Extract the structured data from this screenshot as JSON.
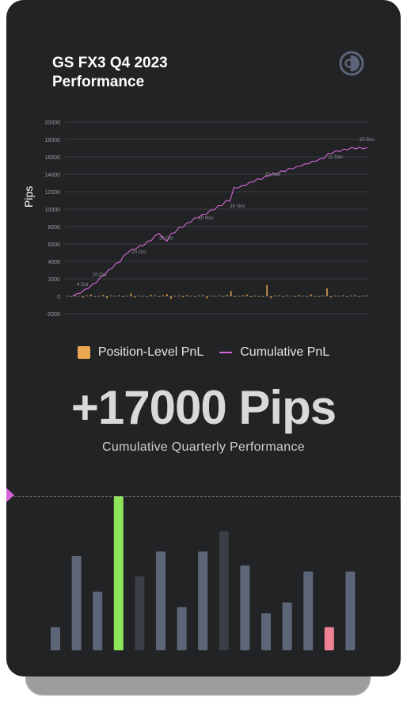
{
  "header": {
    "title": "GS FX3 Q4 2023\nPerformance",
    "logo_icon": "half-circle-logo-icon"
  },
  "chart_data": {
    "type": "line",
    "ylabel": "Pips",
    "ylim": [
      -2000,
      20000
    ],
    "yticks": [
      -2000,
      0,
      2000,
      4000,
      6000,
      8000,
      10000,
      12000,
      14000,
      16000,
      18000,
      20000
    ],
    "grid": true,
    "legend_placement": "bottom-center",
    "series": [
      {
        "name": "Position-Level PnL",
        "type": "bar",
        "color": "#e9a84f",
        "values": [
          60,
          -80,
          120,
          40,
          -150,
          90,
          200,
          -60,
          30,
          150,
          -220,
          80,
          40,
          110,
          -90,
          60,
          320,
          -140,
          70,
          30,
          -60,
          180,
          90,
          -40,
          130,
          260,
          -300,
          50,
          70,
          -110,
          140,
          40,
          -60,
          90,
          120,
          -250,
          60,
          30,
          80,
          -70,
          160,
          600,
          -80,
          40,
          100,
          200,
          -90,
          60,
          30,
          -50,
          1300,
          -200,
          70,
          110,
          -40,
          90,
          60,
          -80,
          150,
          40,
          -60,
          210,
          30,
          -50,
          80,
          900,
          -120,
          60,
          40,
          100,
          -30,
          70,
          120,
          -60,
          50,
          80
        ]
      },
      {
        "name": "Cumulative PnL",
        "type": "line",
        "color": "#d565d6",
        "x": [
          0,
          1,
          2,
          3,
          4,
          5,
          6,
          7,
          8,
          9,
          10,
          11,
          12,
          13,
          14,
          15,
          16,
          17,
          18,
          19,
          20,
          21,
          22,
          23,
          24,
          25,
          26,
          27,
          28,
          29,
          30,
          31,
          32,
          33,
          34,
          35,
          36,
          37,
          38,
          39,
          40,
          41,
          42,
          43,
          44,
          45,
          46,
          47,
          48,
          49,
          50,
          51,
          52,
          53,
          54,
          55,
          56,
          57,
          58,
          59,
          60,
          61,
          62,
          63,
          64,
          65,
          66,
          67,
          68,
          69,
          70,
          71,
          72,
          73,
          74,
          75
        ],
        "values": [
          0,
          200,
          450,
          700,
          1000,
          1300,
          1650,
          2100,
          2500,
          2900,
          3300,
          3700,
          4000,
          4600,
          5100,
          5300,
          5500,
          5700,
          5900,
          6200,
          6500,
          6900,
          7300,
          6600,
          6400,
          7100,
          7400,
          7800,
          8000,
          8300,
          8600,
          8900,
          9100,
          9300,
          9500,
          9800,
          10000,
          10300,
          10500,
          10900,
          11000,
          12400,
          12500,
          12600,
          12800,
          13000,
          13200,
          13400,
          13500,
          13700,
          13900,
          14000,
          14100,
          14300,
          14400,
          14600,
          14700,
          14800,
          15000,
          15100,
          15300,
          15400,
          15600,
          15700,
          15900,
          16300,
          16500,
          16600,
          16700,
          16800,
          16900,
          17000,
          17000,
          17000,
          17000,
          17000
        ]
      }
    ],
    "annotations": [
      {
        "label": "4 Oct",
        "x": 1,
        "y": 1200
      },
      {
        "label": "10 Oct",
        "x": 5,
        "y": 2300
      },
      {
        "label": "20 Oct",
        "x": 15,
        "y": 4900
      },
      {
        "label": "30 Oct",
        "x": 22,
        "y": 6500
      },
      {
        "label": "10 Nov",
        "x": 32,
        "y": 8800
      },
      {
        "label": "20 Nov",
        "x": 40,
        "y": 10200
      },
      {
        "label": "30 Nov",
        "x": 49,
        "y": 13800
      },
      {
        "label": "11 Dec",
        "x": 65,
        "y": 15800
      },
      {
        "label": "20 Dec",
        "x": 73,
        "y": 17800
      }
    ]
  },
  "summary": {
    "headline": "+17000 Pips",
    "subtitle": "Cumulative Quarterly Performance"
  },
  "bottom_bars": {
    "values": [
      0.15,
      0.61,
      0.38,
      1.0,
      0.48,
      0.64,
      0.28,
      0.64,
      0.77,
      0.55,
      0.24,
      0.31,
      0.51,
      0.15,
      0.51
    ],
    "colors": [
      "#5d6678",
      "#5d6678",
      "#5d6678",
      "#8ee55a",
      "#3a3e46",
      "#5d6678",
      "#5d6678",
      "#5d6678",
      "#3a3e46",
      "#5d6678",
      "#5d6678",
      "#5d6678",
      "#5d6678",
      "#ef7f93",
      "#5d6678"
    ]
  }
}
